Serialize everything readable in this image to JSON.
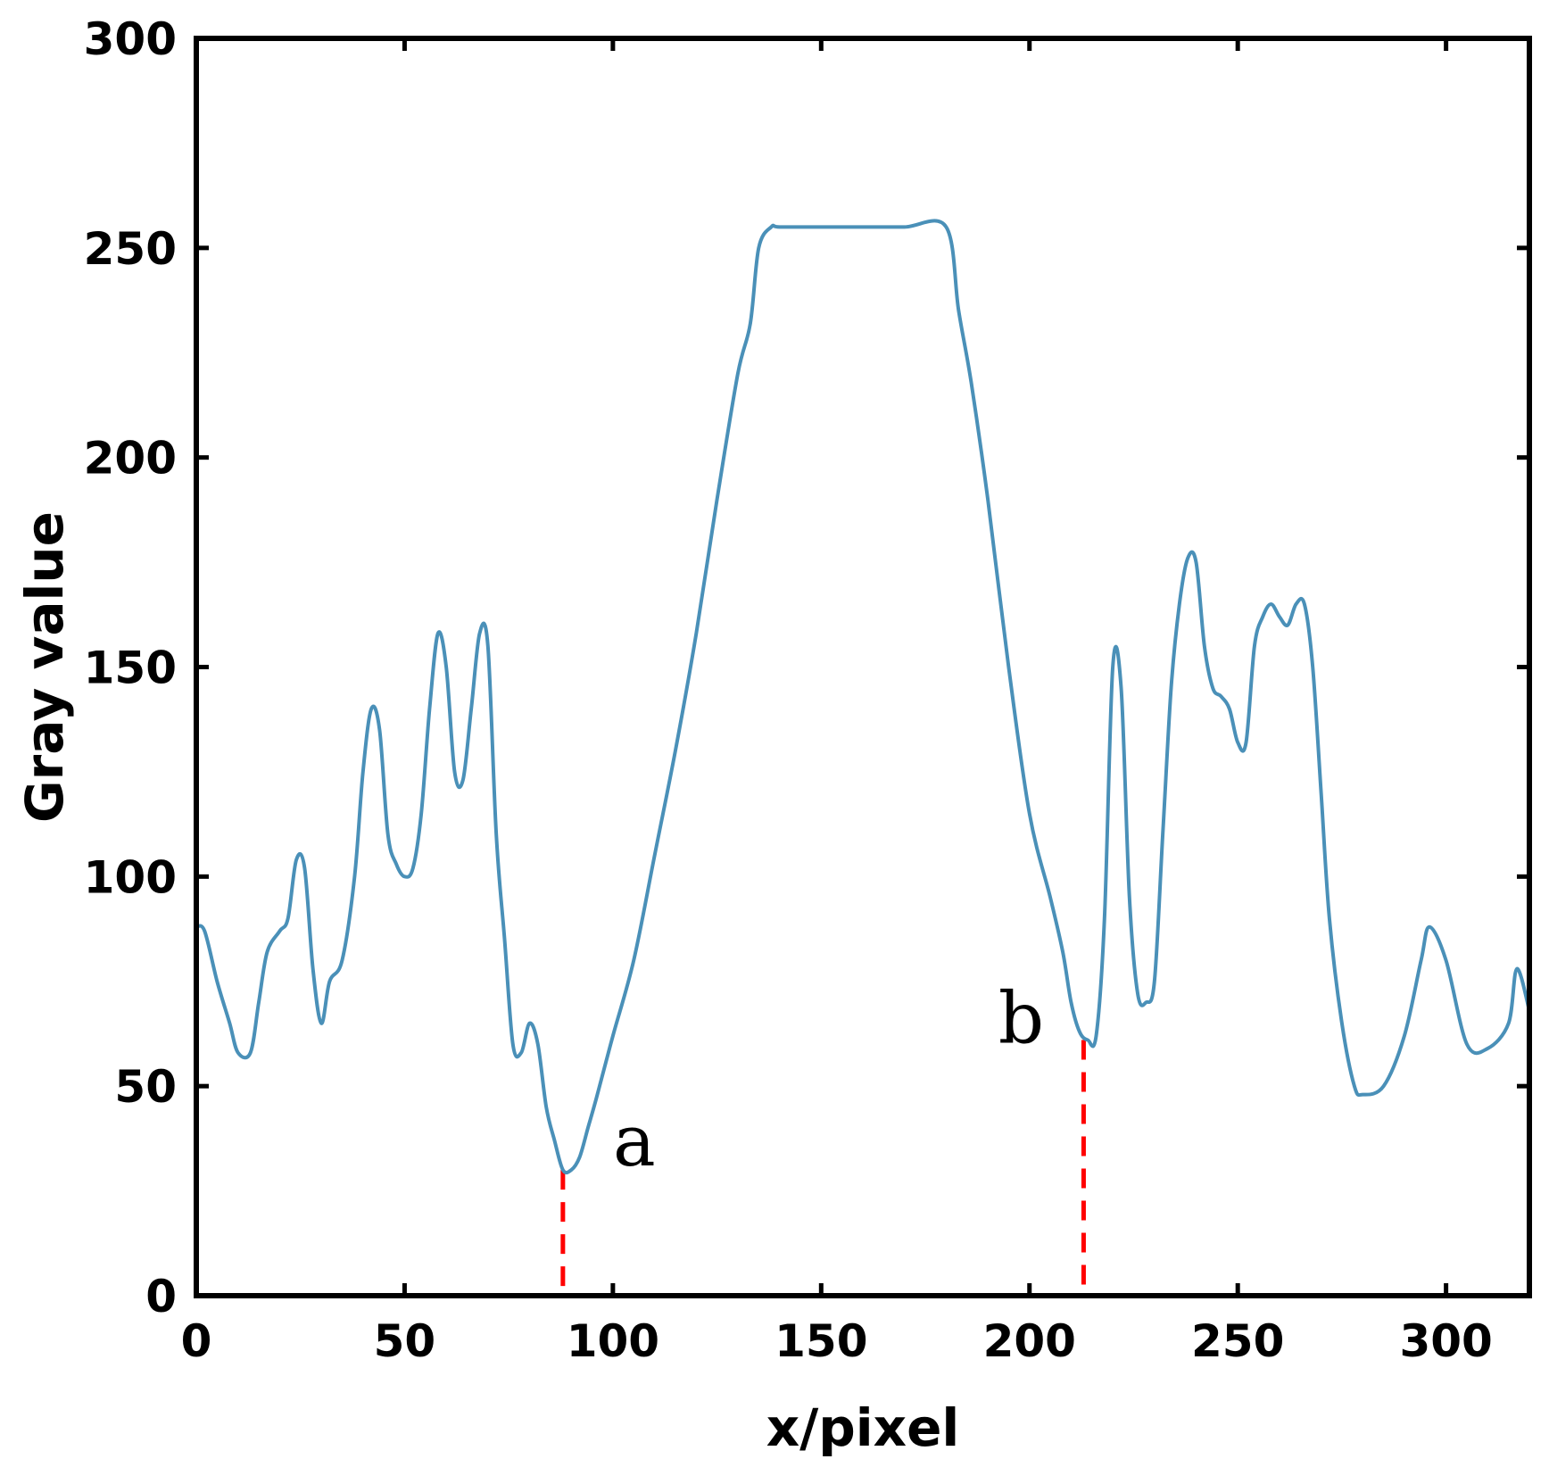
{
  "chart_data": {
    "type": "line",
    "title": "",
    "xlabel": "x/pixel",
    "ylabel": "Gray value",
    "xlim": [
      0,
      320
    ],
    "ylim": [
      0,
      300
    ],
    "xticks": [
      0,
      50,
      100,
      150,
      200,
      250,
      300
    ],
    "yticks": [
      0,
      50,
      100,
      150,
      200,
      250,
      300
    ],
    "grid": false,
    "line_color": "#4a90b8",
    "marker_color": "#ff0000",
    "series": [
      {
        "x": [
          0,
          2,
          5,
          8,
          10,
          13,
          15,
          17,
          20,
          22,
          24,
          26,
          28,
          30,
          32,
          35,
          38,
          40,
          42,
          44,
          46,
          48,
          50,
          52,
          54,
          56,
          58,
          60,
          62,
          64,
          66,
          68,
          70,
          72,
          74,
          76,
          78,
          80,
          82,
          84,
          86,
          88,
          90,
          92,
          94,
          96,
          100,
          105,
          110,
          115,
          120,
          125,
          130,
          133,
          135,
          138,
          140,
          150,
          160,
          170,
          180,
          183,
          186,
          190,
          195,
          200,
          205,
          208,
          210,
          212,
          214,
          216,
          218,
          220,
          222,
          224,
          226,
          228,
          230,
          232,
          234,
          236,
          238,
          240,
          242,
          244,
          246,
          248,
          250,
          252,
          254,
          256,
          258,
          260,
          262,
          264,
          266,
          268,
          270,
          272,
          275,
          278,
          280,
          285,
          290,
          294,
          296,
          300,
          305,
          310,
          315,
          317,
          320
        ],
        "y": [
          88,
          87,
          75,
          65,
          58,
          58,
          70,
          82,
          87,
          90,
          104,
          102,
          78,
          65,
          75,
          80,
          100,
          125,
          140,
          135,
          110,
          103,
          100,
          102,
          115,
          140,
          158,
          150,
          125,
          123,
          140,
          158,
          155,
          110,
          85,
          60,
          58,
          65,
          60,
          45,
          37,
          30,
          30,
          33,
          40,
          47,
          62,
          80,
          105,
          130,
          158,
          190,
          220,
          232,
          250,
          255,
          255,
          255,
          255,
          255,
          255,
          235,
          218,
          190,
          150,
          115,
          95,
          82,
          70,
          63,
          61,
          62,
          90,
          150,
          145,
          95,
          72,
          70,
          75,
          110,
          145,
          165,
          176,
          175,
          155,
          145,
          143,
          140,
          132,
          132,
          155,
          162,
          165,
          162,
          160,
          165,
          165,
          150,
          120,
          90,
          65,
          50,
          48,
          50,
          62,
          80,
          88,
          80,
          60,
          59,
          65,
          78,
          68
        ]
      }
    ],
    "annotations": [
      {
        "label": "a",
        "x": 88,
        "y": 30
      },
      {
        "label": "b",
        "x": 213,
        "y": 61
      }
    ]
  }
}
